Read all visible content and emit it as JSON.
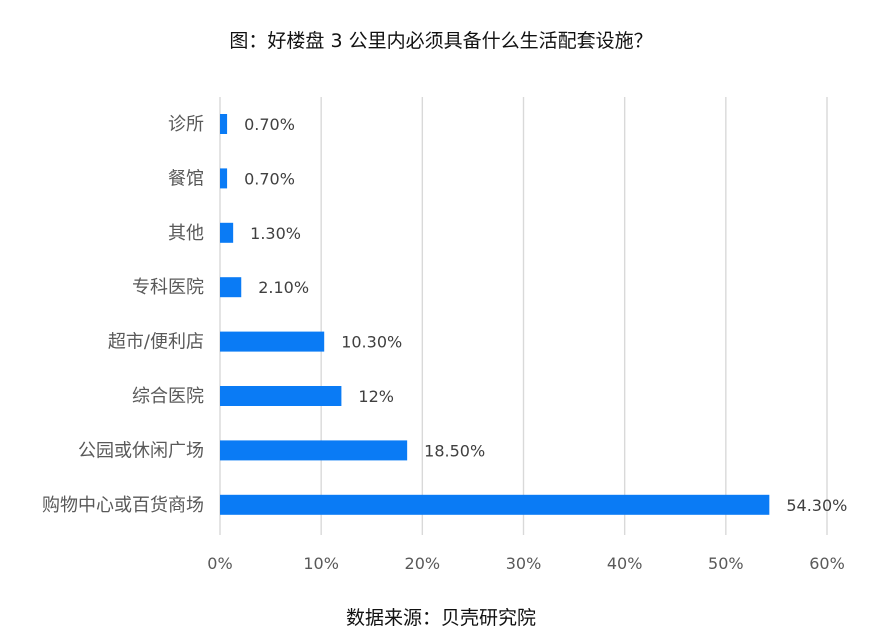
{
  "chart_data": {
    "type": "bar",
    "orientation": "horizontal",
    "title": "图：好楼盘 3 公里内必须具备什么生活配套设施？",
    "source": "数据来源：贝壳研究院",
    "categories": [
      "诊所",
      "餐馆",
      "其他",
      "专科医院",
      "超市/便利店",
      "综合医院",
      "公园或休闲广场",
      "购物中心或百货商场"
    ],
    "values": [
      0.7,
      0.7,
      1.3,
      2.1,
      10.3,
      12,
      18.5,
      54.3
    ],
    "value_labels": [
      "0.70%",
      "0.70%",
      "1.30%",
      "2.10%",
      "10.30%",
      "12%",
      "18.50%",
      "54.30%"
    ],
    "x_ticks": [
      "0%",
      "10%",
      "20%",
      "30%",
      "40%",
      "50%",
      "60%"
    ],
    "xlim": [
      0,
      60
    ],
    "grid": "vertical",
    "bar_color": "#0A7BF5",
    "grid_color": "#D9D9D9"
  }
}
